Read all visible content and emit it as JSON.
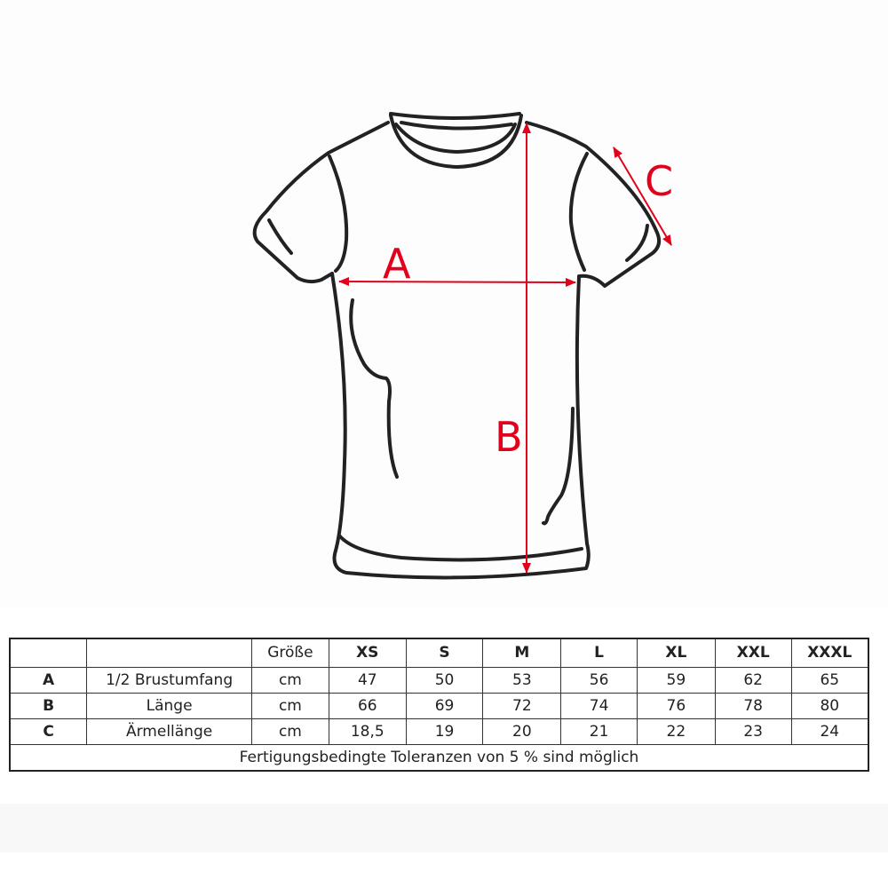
{
  "diagram": {
    "labels": {
      "a": "A",
      "b": "B",
      "c": "C"
    },
    "arrow_color": "#e2001a",
    "outline_color": "#222222"
  },
  "table": {
    "header": {
      "size_label": "Größe",
      "sizes": [
        "XS",
        "S",
        "M",
        "L",
        "XL",
        "XXL",
        "XXXL"
      ]
    },
    "rows": [
      {
        "key": "A",
        "name": "1/2 Brustumfang",
        "unit": "cm",
        "values": [
          "47",
          "50",
          "53",
          "56",
          "59",
          "62",
          "65"
        ]
      },
      {
        "key": "B",
        "name": "Länge",
        "unit": "cm",
        "values": [
          "66",
          "69",
          "72",
          "74",
          "76",
          "78",
          "80"
        ]
      },
      {
        "key": "C",
        "name": "Ärmellänge",
        "unit": "cm",
        "values": [
          "18,5",
          "19",
          "20",
          "21",
          "22",
          "23",
          "24"
        ]
      }
    ],
    "footnote": "Fertigungsbedingte Toleranzen von 5 % sind möglich"
  }
}
